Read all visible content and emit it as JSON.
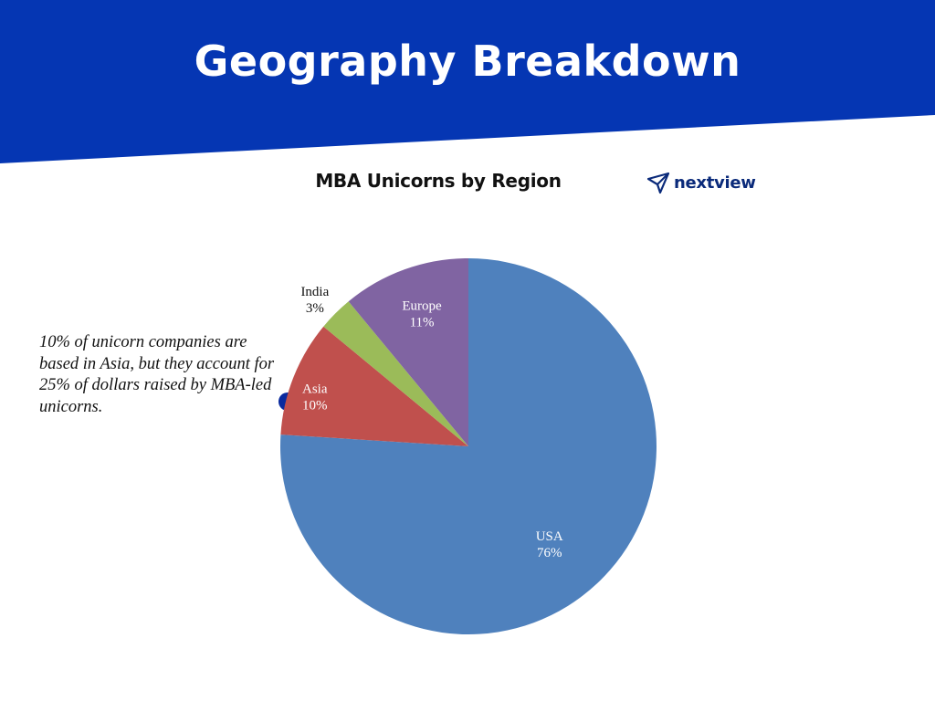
{
  "header": {
    "title": "Geography Breakdown",
    "banner_color": "#0536b3"
  },
  "logo": {
    "text": "nextview",
    "icon": "paper-plane-icon",
    "color": "#0a2a7a"
  },
  "annotation": {
    "text": "10% of unicorn companies are based in Asia, but they account for 25% of dollars raised by MBA-led unicorns.",
    "marker_color": "#0a2a9e"
  },
  "chart_data": {
    "type": "pie",
    "title": "MBA Unicorns by Region",
    "start_angle_deg": 0,
    "direction": "clockwise",
    "slices": [
      {
        "label": "USA",
        "value": 76,
        "pct_label": "76%",
        "color": "#4f81bd",
        "label_color": "#ffffff"
      },
      {
        "label": "Asia",
        "value": 10,
        "pct_label": "10%",
        "color": "#c0504d",
        "label_color": "#ffffff"
      },
      {
        "label": "India",
        "value": 3,
        "pct_label": "3%",
        "color": "#9bbb59",
        "label_color": "#111111"
      },
      {
        "label": "Europe",
        "value": 11,
        "pct_label": "11%",
        "color": "#8064a2",
        "label_color": "#ffffff"
      }
    ]
  }
}
